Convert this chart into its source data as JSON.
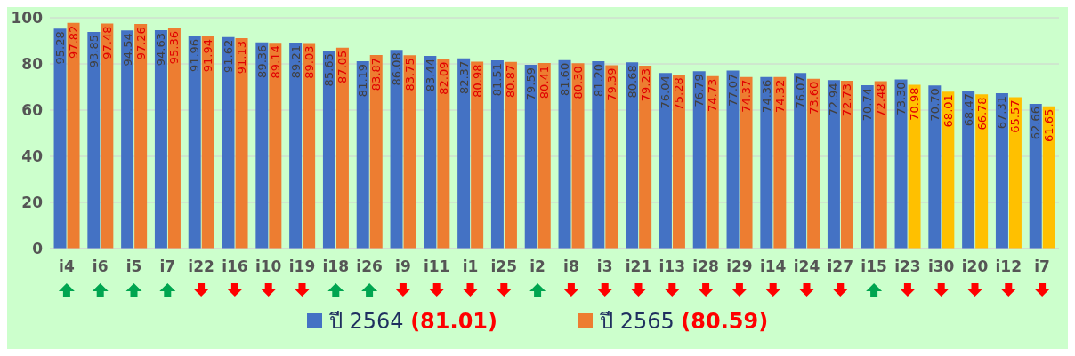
{
  "chart_data": {
    "type": "bar",
    "categories": [
      "i4",
      "i6",
      "i5",
      "i7",
      "i22",
      "i16",
      "i10",
      "i19",
      "i18",
      "i26",
      "i9",
      "i11",
      "i1",
      "i25",
      "i2",
      "i8",
      "i3",
      "i21",
      "i13",
      "i28",
      "i29",
      "i14",
      "i24",
      "i27",
      "i15",
      "i23",
      "i30",
      "i20",
      "i12",
      "i7"
    ],
    "series": [
      {
        "name": "ปี 2564 (81.01)",
        "color": "#4472c4",
        "values": [
          95.28,
          93.85,
          94.54,
          94.63,
          91.96,
          91.62,
          89.36,
          89.21,
          85.65,
          81.19,
          86.08,
          83.44,
          82.37,
          81.51,
          79.59,
          81.6,
          81.2,
          80.68,
          76.04,
          76.79,
          77.07,
          74.36,
          76.07,
          72.94,
          70.74,
          73.3,
          70.7,
          68.47,
          67.31,
          62.66
        ],
        "value_labels": [
          "95.28",
          "93.85",
          "94.54",
          "94.63",
          "91.96",
          "91.62",
          "89.36",
          "89.21",
          "85.65",
          "81.19",
          "86.08",
          "83.44",
          "82.37",
          "81.51",
          "79.59",
          "81.60",
          "81.20",
          "80.68",
          "76.04",
          "76.79",
          "77.07",
          "74.36",
          "76.07",
          "72.94",
          "70.74",
          "73.30",
          "70.70",
          "68.47",
          "67.31",
          "62.66"
        ]
      },
      {
        "name": "ปี 2565 (80.59)",
        "color": "#ed7d31",
        "colors": [
          "#ed7d31",
          "#ed7d31",
          "#ed7d31",
          "#ed7d31",
          "#ed7d31",
          "#ed7d31",
          "#ed7d31",
          "#ed7d31",
          "#ed7d31",
          "#ed7d31",
          "#ed7d31",
          "#ed7d31",
          "#ed7d31",
          "#ed7d31",
          "#ed7d31",
          "#ed7d31",
          "#ed7d31",
          "#ed7d31",
          "#ed7d31",
          "#ed7d31",
          "#ed7d31",
          "#ed7d31",
          "#ed7d31",
          "#ed7d31",
          "#ed7d31",
          "#ffc000",
          "#ffc000",
          "#ffc000",
          "#ffc000",
          "#ffc000"
        ],
        "values": [
          97.82,
          97.48,
          97.26,
          95.36,
          91.94,
          91.13,
          89.14,
          89.03,
          87.05,
          83.87,
          83.75,
          82.09,
          80.98,
          80.87,
          80.41,
          80.3,
          79.39,
          79.23,
          75.28,
          74.73,
          74.37,
          74.32,
          73.6,
          72.73,
          72.48,
          70.98,
          68.01,
          66.78,
          65.57,
          61.65
        ],
        "value_labels": [
          "97.82",
          "97.48",
          "97.26",
          "95.36",
          "91.94",
          "91.13",
          "89.14",
          "89.03",
          "87.05",
          "83.87",
          "83.75",
          "82.09",
          "80.98",
          "80.87",
          "80.41",
          "80.30",
          "79.39",
          "79.23",
          "75.28",
          "74.73",
          "74.37",
          "74.32",
          "73.60",
          "72.73",
          "72.48",
          "70.98",
          "68.01",
          "66.78",
          "65.57",
          "61.65"
        ]
      }
    ],
    "ylim": [
      0,
      100
    ],
    "yticks": [
      0,
      20,
      40,
      60,
      80,
      100
    ],
    "grid": "y",
    "legend": "bottom"
  }
}
